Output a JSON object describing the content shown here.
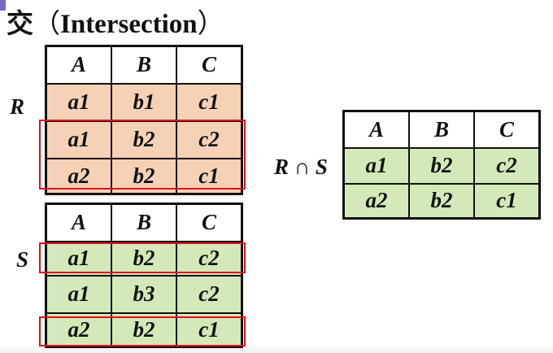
{
  "title": {
    "char": "交",
    "open": "（",
    "text": "Intersection",
    "close": "）"
  },
  "relation_r": {
    "label": "R",
    "headers": [
      "A",
      "B",
      "C"
    ],
    "rows": [
      [
        "a1",
        "b1",
        "c1"
      ],
      [
        "a1",
        "b2",
        "c2"
      ],
      [
        "a2",
        "b2",
        "c1"
      ]
    ]
  },
  "relation_s": {
    "label": "S",
    "headers": [
      "A",
      "B",
      "C"
    ],
    "rows": [
      [
        "a1",
        "b2",
        "c2"
      ],
      [
        "a1",
        "b3",
        "c2"
      ],
      [
        "a2",
        "b2",
        "c1"
      ]
    ]
  },
  "result": {
    "label": "R ∩ S",
    "headers": [
      "A",
      "B",
      "C"
    ],
    "rows": [
      [
        "a1",
        "b2",
        "c2"
      ],
      [
        "a2",
        "b2",
        "c1"
      ]
    ]
  },
  "colors": {
    "r_fill": "#f5d2b6",
    "s_fill": "#d3e9b9",
    "highlight": "#e0101a"
  }
}
